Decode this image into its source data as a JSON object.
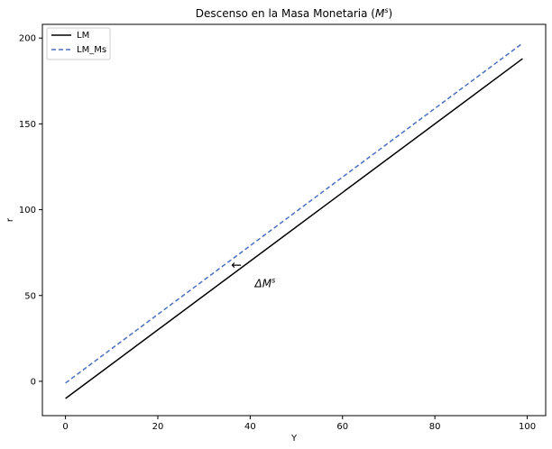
{
  "chart_data": {
    "type": "line",
    "title_main": "Descenso en la Masa Monetaria (",
    "title_sym": "M",
    "title_sup": "s",
    "title_close": ")",
    "xlabel": "Y",
    "ylabel": "r",
    "xlim": [
      -5,
      104
    ],
    "ylim": [
      -20,
      208
    ],
    "xticks": [
      0,
      20,
      40,
      60,
      80,
      100
    ],
    "yticks": [
      0,
      50,
      100,
      150,
      200
    ],
    "grid": false,
    "legend_position": "upper-left",
    "series": [
      {
        "name": "LM",
        "color": "#000000",
        "style": "solid",
        "x": [
          0,
          99
        ],
        "y": [
          -10,
          188
        ]
      },
      {
        "name": "LM_Ms",
        "color": "#4a6fc0",
        "style": "dashed",
        "x": [
          0,
          99
        ],
        "y": [
          -1,
          197
        ]
      }
    ],
    "annotation": {
      "arrow_glyph": "←",
      "label_delta": "Δ",
      "label_sym": "M",
      "label_sup": "s",
      "arrow_at": [
        37,
        68
      ],
      "text_at": [
        41,
        57
      ]
    }
  }
}
